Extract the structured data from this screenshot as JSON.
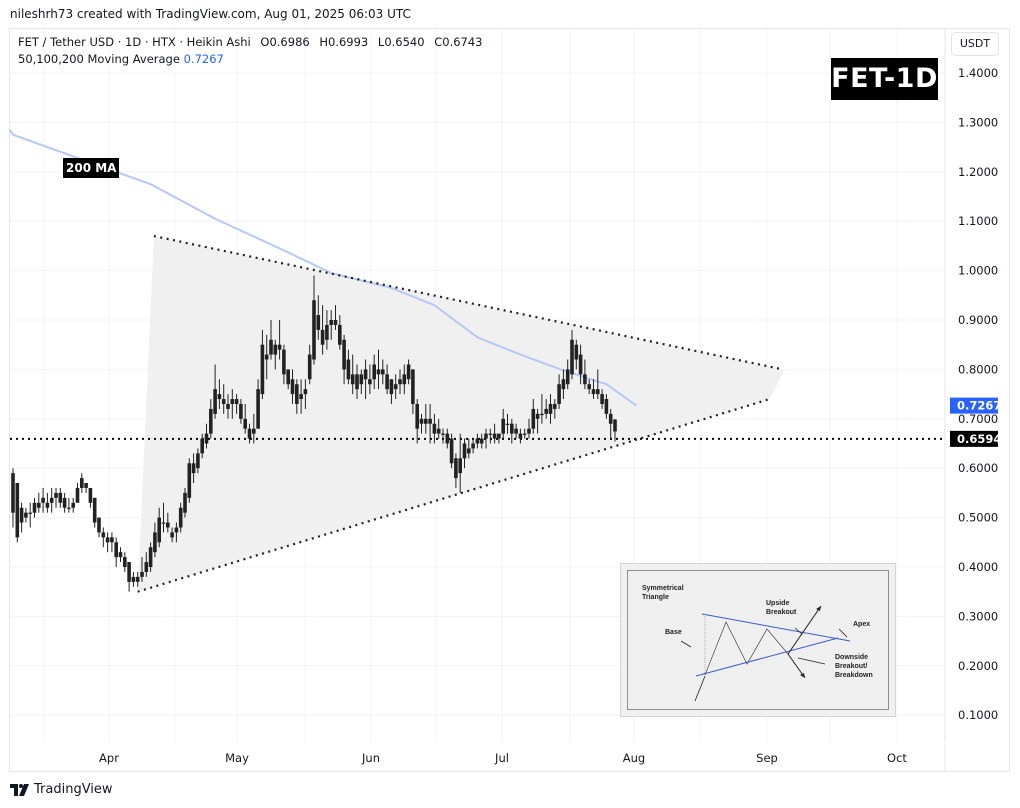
{
  "header": {
    "credit": "nileshrh73 created with TradingView.com, Aug 01, 2025 06:03 UTC"
  },
  "legend": {
    "symbol_line": "FET / Tether USD · 1D · HTX · Heikin Ashi",
    "open": "O0.6986",
    "high": "H0.6993",
    "low": "L0.6540",
    "close": "C0.6743",
    "ma_label": "50,100,200 Moving Average",
    "ma_value": "0.7267"
  },
  "currency_button": "USDT",
  "badge": "FET-1D",
  "ma_annotation": "200 MA",
  "price_axis": {
    "ticks": [
      "1.4000",
      "1.3000",
      "1.2000",
      "1.1000",
      "1.0000",
      "0.9000",
      "0.8000",
      "0.7000",
      "0.6000",
      "0.5000",
      "0.4000",
      "0.3000",
      "0.2000",
      "0.1000"
    ],
    "ma_tag": {
      "value": "0.7267",
      "color": "#2962ff"
    },
    "last_price_tag": {
      "value": "0.6594",
      "color": "#000000"
    }
  },
  "time_axis": {
    "ticks": [
      "Apr",
      "May",
      "Jun",
      "Jul",
      "Aug",
      "Sep",
      "Oct"
    ]
  },
  "footer": {
    "logo_text": "TradingView"
  },
  "inset": {
    "title_line1": "Symmetrical",
    "title_line2": "Triangle",
    "base": "Base",
    "upside_line1": "Upside",
    "upside_line2": "Breakout",
    "apex": "Apex",
    "downside_line1": "Downside",
    "downside_line2": "Breakout/",
    "downside_line3": "Breakdown"
  },
  "colors": {
    "candle": "#222222",
    "ma200": "#b7c8f4",
    "triangle_fill": "#f0f0f0",
    "grid": "#f0f3fa",
    "ma_tag": "#2962ff",
    "last_price_tag": "#000000"
  },
  "chart_data": {
    "type": "candlestick",
    "title": "FET / Tether USD · 1D · HTX · Heikin Ashi",
    "xlabel": "",
    "ylabel": "USDT",
    "ylim": [
      0.05,
      1.45
    ],
    "grid": true,
    "x_ticks": [
      "Apr",
      "May",
      "Jun",
      "Jul",
      "Aug",
      "Sep",
      "Oct"
    ],
    "y_ticks": [
      1.4,
      1.3,
      1.2,
      1.1,
      1.0,
      0.9,
      0.8,
      0.7,
      0.6,
      0.5,
      0.4,
      0.3,
      0.2,
      0.1
    ],
    "last_price": 0.6594,
    "ma200_last": 0.7267,
    "annotations": [
      "FET-1D",
      "200 MA",
      "Symmetrical triangle (dotted trendlines)"
    ],
    "trendlines": {
      "upper": {
        "from": {
          "date": "2025-04-11",
          "price": 1.07
        },
        "to": {
          "date": "2025-09-04",
          "price": 0.8
        }
      },
      "lower": {
        "from": {
          "date": "2025-04-07",
          "price": 0.35
        },
        "to": {
          "date": "2025-09-01",
          "price": 0.74
        }
      }
    },
    "ma200": [
      {
        "date": "2025-03-09",
        "value": 1.275
      },
      {
        "date": "2025-03-25",
        "value": 1.225
      },
      {
        "date": "2025-04-10",
        "value": 1.175
      },
      {
        "date": "2025-04-25",
        "value": 1.105
      },
      {
        "date": "2025-05-10",
        "value": 1.045
      },
      {
        "date": "2025-05-22",
        "value": 0.995
      },
      {
        "date": "2025-06-05",
        "value": 0.965
      },
      {
        "date": "2025-06-15",
        "value": 0.93
      },
      {
        "date": "2025-06-25",
        "value": 0.865
      },
      {
        "date": "2025-07-05",
        "value": 0.83
      },
      {
        "date": "2025-07-15",
        "value": 0.798
      },
      {
        "date": "2025-07-25",
        "value": 0.77
      },
      {
        "date": "2025-08-01",
        "value": 0.7267
      }
    ],
    "candles": [
      {
        "o": 0.59,
        "h": 0.6,
        "l": 0.48,
        "c": 0.51
      },
      {
        "o": 0.57,
        "h": 0.57,
        "l": 0.45,
        "c": 0.46
      },
      {
        "o": 0.52,
        "h": 0.53,
        "l": 0.47,
        "c": 0.49
      },
      {
        "o": 0.5,
        "h": 0.52,
        "l": 0.49,
        "c": 0.51
      },
      {
        "o": 0.51,
        "h": 0.53,
        "l": 0.48,
        "c": 0.51
      },
      {
        "o": 0.51,
        "h": 0.54,
        "l": 0.5,
        "c": 0.53
      },
      {
        "o": 0.52,
        "h": 0.55,
        "l": 0.51,
        "c": 0.53
      },
      {
        "o": 0.53,
        "h": 0.56,
        "l": 0.51,
        "c": 0.54
      },
      {
        "o": 0.53,
        "h": 0.55,
        "l": 0.51,
        "c": 0.52
      },
      {
        "o": 0.53,
        "h": 0.56,
        "l": 0.51,
        "c": 0.54
      },
      {
        "o": 0.54,
        "h": 0.56,
        "l": 0.52,
        "c": 0.55
      },
      {
        "o": 0.55,
        "h": 0.56,
        "l": 0.52,
        "c": 0.53
      },
      {
        "o": 0.54,
        "h": 0.55,
        "l": 0.51,
        "c": 0.52
      },
      {
        "o": 0.52,
        "h": 0.54,
        "l": 0.51,
        "c": 0.52
      },
      {
        "o": 0.52,
        "h": 0.54,
        "l": 0.51,
        "c": 0.53
      },
      {
        "o": 0.53,
        "h": 0.57,
        "l": 0.53,
        "c": 0.56
      },
      {
        "o": 0.56,
        "h": 0.59,
        "l": 0.55,
        "c": 0.58
      },
      {
        "o": 0.57,
        "h": 0.57,
        "l": 0.55,
        "c": 0.56
      },
      {
        "o": 0.56,
        "h": 0.56,
        "l": 0.52,
        "c": 0.53
      },
      {
        "o": 0.54,
        "h": 0.54,
        "l": 0.48,
        "c": 0.49
      },
      {
        "o": 0.5,
        "h": 0.5,
        "l": 0.46,
        "c": 0.47
      },
      {
        "o": 0.47,
        "h": 0.48,
        "l": 0.44,
        "c": 0.46
      },
      {
        "o": 0.46,
        "h": 0.47,
        "l": 0.43,
        "c": 0.45
      },
      {
        "o": 0.46,
        "h": 0.47,
        "l": 0.43,
        "c": 0.45
      },
      {
        "o": 0.45,
        "h": 0.46,
        "l": 0.4,
        "c": 0.42
      },
      {
        "o": 0.43,
        "h": 0.44,
        "l": 0.41,
        "c": 0.42
      },
      {
        "o": 0.42,
        "h": 0.43,
        "l": 0.39,
        "c": 0.4
      },
      {
        "o": 0.41,
        "h": 0.41,
        "l": 0.35,
        "c": 0.37
      },
      {
        "o": 0.37,
        "h": 0.39,
        "l": 0.36,
        "c": 0.38
      },
      {
        "o": 0.38,
        "h": 0.39,
        "l": 0.36,
        "c": 0.37
      },
      {
        "o": 0.38,
        "h": 0.42,
        "l": 0.37,
        "c": 0.39
      },
      {
        "o": 0.39,
        "h": 0.43,
        "l": 0.38,
        "c": 0.41
      },
      {
        "o": 0.4,
        "h": 0.45,
        "l": 0.39,
        "c": 0.44
      },
      {
        "o": 0.43,
        "h": 0.49,
        "l": 0.42,
        "c": 0.47
      },
      {
        "o": 0.45,
        "h": 0.52,
        "l": 0.44,
        "c": 0.5
      },
      {
        "o": 0.49,
        "h": 0.53,
        "l": 0.47,
        "c": 0.49
      },
      {
        "o": 0.49,
        "h": 0.51,
        "l": 0.47,
        "c": 0.48
      },
      {
        "o": 0.47,
        "h": 0.48,
        "l": 0.45,
        "c": 0.46
      },
      {
        "o": 0.47,
        "h": 0.49,
        "l": 0.45,
        "c": 0.48
      },
      {
        "o": 0.48,
        "h": 0.53,
        "l": 0.47,
        "c": 0.52
      },
      {
        "o": 0.51,
        "h": 0.56,
        "l": 0.5,
        "c": 0.55
      },
      {
        "o": 0.54,
        "h": 0.62,
        "l": 0.53,
        "c": 0.61
      },
      {
        "o": 0.59,
        "h": 0.63,
        "l": 0.57,
        "c": 0.61
      },
      {
        "o": 0.6,
        "h": 0.64,
        "l": 0.59,
        "c": 0.63
      },
      {
        "o": 0.63,
        "h": 0.67,
        "l": 0.62,
        "c": 0.66
      },
      {
        "o": 0.65,
        "h": 0.69,
        "l": 0.64,
        "c": 0.67
      },
      {
        "o": 0.67,
        "h": 0.74,
        "l": 0.66,
        "c": 0.72
      },
      {
        "o": 0.71,
        "h": 0.81,
        "l": 0.7,
        "c": 0.76
      },
      {
        "o": 0.75,
        "h": 0.78,
        "l": 0.72,
        "c": 0.74
      },
      {
        "o": 0.74,
        "h": 0.77,
        "l": 0.71,
        "c": 0.73
      },
      {
        "o": 0.73,
        "h": 0.75,
        "l": 0.7,
        "c": 0.72
      },
      {
        "o": 0.73,
        "h": 0.76,
        "l": 0.7,
        "c": 0.74
      },
      {
        "o": 0.74,
        "h": 0.75,
        "l": 0.71,
        "c": 0.73
      },
      {
        "o": 0.73,
        "h": 0.74,
        "l": 0.69,
        "c": 0.7
      },
      {
        "o": 0.7,
        "h": 0.73,
        "l": 0.67,
        "c": 0.68
      },
      {
        "o": 0.68,
        "h": 0.69,
        "l": 0.65,
        "c": 0.66
      },
      {
        "o": 0.67,
        "h": 0.71,
        "l": 0.65,
        "c": 0.68
      },
      {
        "o": 0.68,
        "h": 0.78,
        "l": 0.68,
        "c": 0.76
      },
      {
        "o": 0.75,
        "h": 0.88,
        "l": 0.74,
        "c": 0.85
      },
      {
        "o": 0.82,
        "h": 0.87,
        "l": 0.78,
        "c": 0.83
      },
      {
        "o": 0.83,
        "h": 0.9,
        "l": 0.82,
        "c": 0.86
      },
      {
        "o": 0.85,
        "h": 0.86,
        "l": 0.8,
        "c": 0.83
      },
      {
        "o": 0.84,
        "h": 0.9,
        "l": 0.82,
        "c": 0.85
      },
      {
        "o": 0.84,
        "h": 0.85,
        "l": 0.77,
        "c": 0.79
      },
      {
        "o": 0.8,
        "h": 0.8,
        "l": 0.76,
        "c": 0.77
      },
      {
        "o": 0.78,
        "h": 0.8,
        "l": 0.73,
        "c": 0.75
      },
      {
        "o": 0.77,
        "h": 0.78,
        "l": 0.71,
        "c": 0.73
      },
      {
        "o": 0.74,
        "h": 0.78,
        "l": 0.71,
        "c": 0.75
      },
      {
        "o": 0.76,
        "h": 0.78,
        "l": 0.72,
        "c": 0.75
      },
      {
        "o": 0.78,
        "h": 0.85,
        "l": 0.77,
        "c": 0.83
      },
      {
        "o": 0.82,
        "h": 0.99,
        "l": 0.81,
        "c": 0.94
      },
      {
        "o": 0.91,
        "h": 0.95,
        "l": 0.86,
        "c": 0.88
      },
      {
        "o": 0.88,
        "h": 0.93,
        "l": 0.83,
        "c": 0.85
      },
      {
        "o": 0.86,
        "h": 0.92,
        "l": 0.84,
        "c": 0.89
      },
      {
        "o": 0.89,
        "h": 0.92,
        "l": 0.86,
        "c": 0.9
      },
      {
        "o": 0.9,
        "h": 0.93,
        "l": 0.88,
        "c": 0.89
      },
      {
        "o": 0.89,
        "h": 0.91,
        "l": 0.84,
        "c": 0.85
      },
      {
        "o": 0.86,
        "h": 0.87,
        "l": 0.77,
        "c": 0.8
      },
      {
        "o": 0.82,
        "h": 0.84,
        "l": 0.77,
        "c": 0.78
      },
      {
        "o": 0.79,
        "h": 0.83,
        "l": 0.75,
        "c": 0.77
      },
      {
        "o": 0.79,
        "h": 0.81,
        "l": 0.74,
        "c": 0.76
      },
      {
        "o": 0.77,
        "h": 0.8,
        "l": 0.75,
        "c": 0.79
      },
      {
        "o": 0.8,
        "h": 0.82,
        "l": 0.74,
        "c": 0.78
      },
      {
        "o": 0.77,
        "h": 0.81,
        "l": 0.75,
        "c": 0.78
      },
      {
        "o": 0.78,
        "h": 0.83,
        "l": 0.76,
        "c": 0.81
      },
      {
        "o": 0.8,
        "h": 0.84,
        "l": 0.76,
        "c": 0.79
      },
      {
        "o": 0.8,
        "h": 0.82,
        "l": 0.77,
        "c": 0.79
      },
      {
        "o": 0.79,
        "h": 0.81,
        "l": 0.75,
        "c": 0.76
      },
      {
        "o": 0.78,
        "h": 0.78,
        "l": 0.73,
        "c": 0.75
      },
      {
        "o": 0.76,
        "h": 0.79,
        "l": 0.74,
        "c": 0.77
      },
      {
        "o": 0.77,
        "h": 0.8,
        "l": 0.75,
        "c": 0.78
      },
      {
        "o": 0.79,
        "h": 0.81,
        "l": 0.75,
        "c": 0.77
      },
      {
        "o": 0.78,
        "h": 0.82,
        "l": 0.77,
        "c": 0.81
      },
      {
        "o": 0.8,
        "h": 0.8,
        "l": 0.71,
        "c": 0.73
      },
      {
        "o": 0.73,
        "h": 0.74,
        "l": 0.65,
        "c": 0.68
      },
      {
        "o": 0.7,
        "h": 0.71,
        "l": 0.67,
        "c": 0.69
      },
      {
        "o": 0.69,
        "h": 0.73,
        "l": 0.67,
        "c": 0.7
      },
      {
        "o": 0.7,
        "h": 0.73,
        "l": 0.65,
        "c": 0.69
      },
      {
        "o": 0.69,
        "h": 0.71,
        "l": 0.65,
        "c": 0.67
      },
      {
        "o": 0.68,
        "h": 0.7,
        "l": 0.66,
        "c": 0.67
      },
      {
        "o": 0.67,
        "h": 0.68,
        "l": 0.65,
        "c": 0.67
      },
      {
        "o": 0.67,
        "h": 0.68,
        "l": 0.64,
        "c": 0.65
      },
      {
        "o": 0.66,
        "h": 0.67,
        "l": 0.6,
        "c": 0.61
      },
      {
        "o": 0.62,
        "h": 0.63,
        "l": 0.56,
        "c": 0.58
      },
      {
        "o": 0.59,
        "h": 0.67,
        "l": 0.55,
        "c": 0.62
      },
      {
        "o": 0.62,
        "h": 0.66,
        "l": 0.6,
        "c": 0.65
      },
      {
        "o": 0.64,
        "h": 0.66,
        "l": 0.62,
        "c": 0.63
      },
      {
        "o": 0.64,
        "h": 0.66,
        "l": 0.63,
        "c": 0.65
      },
      {
        "o": 0.65,
        "h": 0.67,
        "l": 0.64,
        "c": 0.66
      },
      {
        "o": 0.65,
        "h": 0.67,
        "l": 0.64,
        "c": 0.66
      },
      {
        "o": 0.66,
        "h": 0.68,
        "l": 0.64,
        "c": 0.67
      },
      {
        "o": 0.67,
        "h": 0.68,
        "l": 0.65,
        "c": 0.67
      },
      {
        "o": 0.67,
        "h": 0.69,
        "l": 0.65,
        "c": 0.66
      },
      {
        "o": 0.66,
        "h": 0.67,
        "l": 0.65,
        "c": 0.67
      },
      {
        "o": 0.67,
        "h": 0.72,
        "l": 0.66,
        "c": 0.7
      },
      {
        "o": 0.69,
        "h": 0.71,
        "l": 0.67,
        "c": 0.69
      },
      {
        "o": 0.69,
        "h": 0.7,
        "l": 0.65,
        "c": 0.67
      },
      {
        "o": 0.68,
        "h": 0.69,
        "l": 0.66,
        "c": 0.67
      },
      {
        "o": 0.67,
        "h": 0.68,
        "l": 0.65,
        "c": 0.66
      },
      {
        "o": 0.67,
        "h": 0.68,
        "l": 0.66,
        "c": 0.67
      },
      {
        "o": 0.67,
        "h": 0.7,
        "l": 0.66,
        "c": 0.68
      },
      {
        "o": 0.68,
        "h": 0.74,
        "l": 0.67,
        "c": 0.72
      },
      {
        "o": 0.7,
        "h": 0.72,
        "l": 0.67,
        "c": 0.71
      },
      {
        "o": 0.71,
        "h": 0.75,
        "l": 0.69,
        "c": 0.71
      },
      {
        "o": 0.71,
        "h": 0.74,
        "l": 0.7,
        "c": 0.72
      },
      {
        "o": 0.71,
        "h": 0.75,
        "l": 0.69,
        "c": 0.73
      },
      {
        "o": 0.72,
        "h": 0.74,
        "l": 0.7,
        "c": 0.73
      },
      {
        "o": 0.73,
        "h": 0.79,
        "l": 0.72,
        "c": 0.77
      },
      {
        "o": 0.76,
        "h": 0.8,
        "l": 0.74,
        "c": 0.78
      },
      {
        "o": 0.77,
        "h": 0.82,
        "l": 0.76,
        "c": 0.8
      },
      {
        "o": 0.79,
        "h": 0.88,
        "l": 0.78,
        "c": 0.86
      },
      {
        "o": 0.85,
        "h": 0.86,
        "l": 0.8,
        "c": 0.82
      },
      {
        "o": 0.83,
        "h": 0.85,
        "l": 0.77,
        "c": 0.79
      },
      {
        "o": 0.79,
        "h": 0.82,
        "l": 0.76,
        "c": 0.77
      },
      {
        "o": 0.77,
        "h": 0.78,
        "l": 0.75,
        "c": 0.76
      },
      {
        "o": 0.76,
        "h": 0.78,
        "l": 0.74,
        "c": 0.75
      },
      {
        "o": 0.76,
        "h": 0.8,
        "l": 0.74,
        "c": 0.75
      },
      {
        "o": 0.75,
        "h": 0.76,
        "l": 0.72,
        "c": 0.73
      },
      {
        "o": 0.74,
        "h": 0.75,
        "l": 0.7,
        "c": 0.71
      },
      {
        "o": 0.71,
        "h": 0.72,
        "l": 0.66,
        "c": 0.69
      },
      {
        "o": 0.6986,
        "h": 0.6993,
        "l": 0.654,
        "c": 0.6743
      }
    ]
  }
}
